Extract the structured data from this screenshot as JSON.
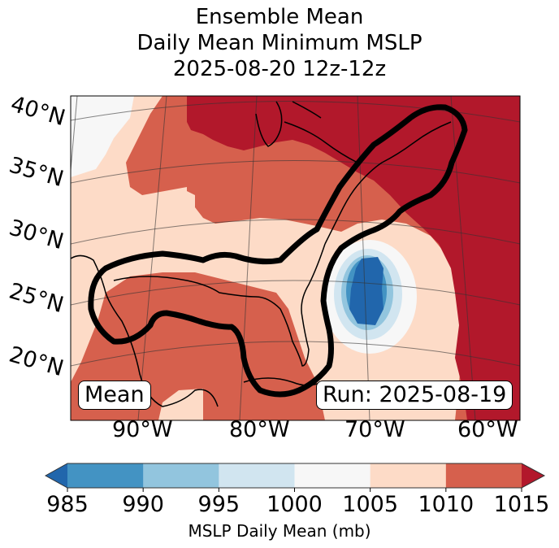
{
  "title": {
    "line1": "Ensemble Mean",
    "line2": "Daily Mean Minimum MSLP",
    "line3": "2025-08-20 12z-12z"
  },
  "map": {
    "lat_labels": [
      "40°N",
      "35°N",
      "30°N",
      "25°N",
      "20°N"
    ],
    "lon_labels": [
      "90°W",
      "80°W",
      "70°W",
      "60°W"
    ],
    "annotations": {
      "left": "Mean",
      "right": "Run: 2025-08-19"
    },
    "regions": {
      "min_pressure_center": "off Mid-Atlantic / Carolina coast, below 985 mb",
      "outline": "thick black contour from Texas coast along Gulf of Mexico to Florida Straits and up US East Coast to Nova Scotia"
    }
  },
  "colorbar": {
    "label": "MSLP Daily Mean (mb)",
    "ticks": [
      "985",
      "990",
      "995",
      "1000",
      "1005",
      "1010",
      "1015"
    ],
    "extend": "both",
    "colors": {
      "below_985": "#2166ac",
      "985_990": "#4393c3",
      "990_995": "#92c5de",
      "995_1000": "#d1e5f0",
      "1000_1005": "#f7f7f7",
      "1005_1010": "#fddbc7",
      "1010_1015": "#d6604d",
      "above_1015": "#b2182b"
    }
  },
  "chart_data": {
    "type": "heatmap",
    "title": "Ensemble Mean Daily Mean Minimum MSLP 2025-08-20 12z-12z",
    "colorbar_label": "MSLP Daily Mean (mb)",
    "levels": [
      985,
      990,
      995,
      1000,
      1005,
      1010,
      1015
    ],
    "lat_ticks": [
      40,
      35,
      30,
      25,
      20
    ],
    "lon_ticks": [
      -90,
      -80,
      -70,
      -60
    ],
    "extent": {
      "lon": [
        -97,
        -58
      ],
      "lat": [
        17,
        42
      ]
    }
  }
}
